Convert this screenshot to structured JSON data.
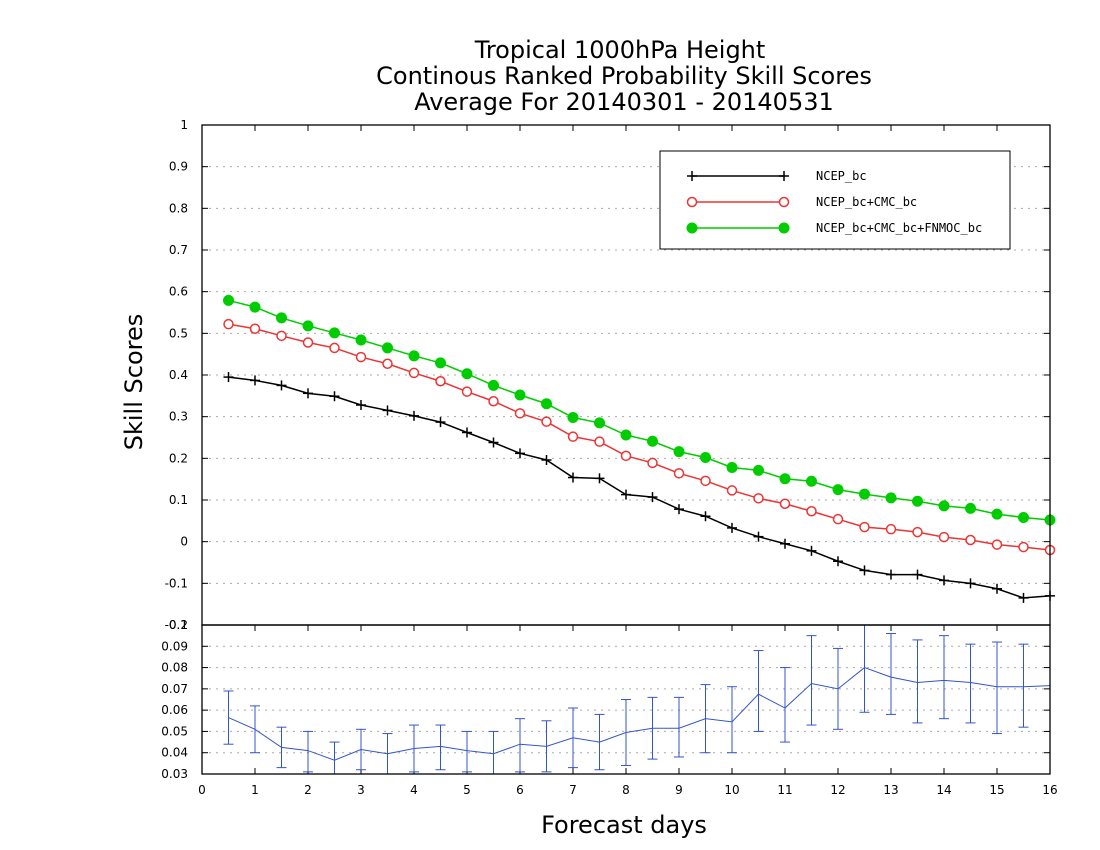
{
  "titles": [
    "Tropical 1000hPa Height",
    "Continous Ranked Probability Skill Scores",
    "Average For 20140301 - 20140531"
  ],
  "colors": {
    "NCEP_bc": "#000000",
    "NCEP_bc+CMC_bc": "#ee3333",
    "NCEP_bc+CMC_bc+FNMOC_bc": "#00cc00",
    "diff": "#3355cc"
  },
  "chart_data": [
    {
      "type": "line",
      "title": "Tropical 1000hPa Height / Continous Ranked Probability Skill Scores / Average For 20140301 - 20140531",
      "xlabel": "Forecast days",
      "ylabel": "Skill Scores",
      "xlim": [
        0,
        16
      ],
      "ylim": [
        -0.2,
        1
      ],
      "yticks": [
        "1",
        "0.9",
        "0.8",
        "0.7",
        "0.6",
        "0.5",
        "0.4",
        "0.3",
        "0.2",
        "0.1",
        "0",
        "-0.1",
        "-0.2"
      ],
      "grid": true,
      "legend_position": "top-right",
      "x": [
        0.5,
        1,
        1.5,
        2,
        2.5,
        3,
        3.5,
        4,
        4.5,
        5,
        5.5,
        6,
        6.5,
        7,
        7.5,
        8,
        8.5,
        9,
        9.5,
        10,
        10.5,
        11,
        11.5,
        12,
        12.5,
        13,
        13.5,
        14,
        14.5,
        15,
        15.5,
        16
      ],
      "series": [
        {
          "name": "NCEP_bc",
          "marker": "plus",
          "values": [
            0.395,
            0.387,
            0.375,
            0.356,
            0.349,
            0.328,
            0.315,
            0.302,
            0.287,
            0.262,
            0.238,
            0.212,
            0.196,
            0.154,
            0.152,
            0.113,
            0.107,
            0.078,
            0.061,
            0.033,
            0.012,
            -0.005,
            -0.022,
            -0.047,
            -0.069,
            -0.079,
            -0.079,
            -0.093,
            -0.1,
            -0.113,
            -0.135,
            -0.13
          ]
        },
        {
          "name": "NCEP_bc+CMC_bc",
          "marker": "open-circle",
          "values": [
            0.522,
            0.511,
            0.494,
            0.478,
            0.465,
            0.443,
            0.427,
            0.405,
            0.385,
            0.36,
            0.337,
            0.308,
            0.288,
            0.252,
            0.24,
            0.206,
            0.189,
            0.164,
            0.146,
            0.123,
            0.104,
            0.091,
            0.073,
            0.054,
            0.035,
            0.03,
            0.023,
            0.011,
            0.004,
            -0.007,
            -0.013,
            -0.02
          ]
        },
        {
          "name": "NCEP_bc+CMC_bc+FNMOC_bc",
          "marker": "filled-circle",
          "values": [
            0.579,
            0.563,
            0.537,
            0.518,
            0.501,
            0.484,
            0.465,
            0.446,
            0.429,
            0.403,
            0.375,
            0.352,
            0.331,
            0.298,
            0.285,
            0.256,
            0.241,
            0.216,
            0.202,
            0.178,
            0.171,
            0.151,
            0.145,
            0.125,
            0.114,
            0.105,
            0.097,
            0.086,
            0.08,
            0.066,
            0.058,
            0.052
          ]
        }
      ]
    },
    {
      "type": "line",
      "xlabel": "Forecast days",
      "xlim": [
        0,
        16
      ],
      "ylim": [
        0.03,
        0.1
      ],
      "xticks": [
        "0",
        "1",
        "2",
        "3",
        "4",
        "5",
        "6",
        "7",
        "8",
        "9",
        "10",
        "11",
        "12",
        "13",
        "14",
        "15",
        "16"
      ],
      "yticks": [
        "0.1",
        "0.09",
        "0.08",
        "0.07",
        "0.06",
        "0.05",
        "0.04",
        "0.03"
      ],
      "grid": true,
      "x": [
        0.5,
        1,
        1.5,
        2,
        2.5,
        3,
        3.5,
        4,
        4.5,
        5,
        5.5,
        6,
        6.5,
        7,
        7.5,
        8,
        8.5,
        9,
        9.5,
        10,
        10.5,
        11,
        11.5,
        12,
        12.5,
        13,
        13.5,
        14,
        14.5,
        15,
        15.5,
        16
      ],
      "series": [
        {
          "error_bars": true,
          "values": [
            0.0565,
            0.051,
            0.0425,
            0.041,
            0.0365,
            0.0415,
            0.0395,
            0.042,
            0.043,
            0.041,
            0.0395,
            0.044,
            0.043,
            0.047,
            0.045,
            0.0495,
            0.0515,
            0.0515,
            0.056,
            0.0545,
            0.0675,
            0.061,
            0.0725,
            0.07,
            0.08,
            0.0755,
            0.073,
            0.074,
            0.073,
            0.071,
            0.071,
            0.0715
          ],
          "lower": [
            0.044,
            0.04,
            0.033,
            0.031,
            0.028,
            0.032,
            0.029,
            0.031,
            0.032,
            0.031,
            0.027,
            0.031,
            0.031,
            0.033,
            0.032,
            0.034,
            0.037,
            0.038,
            0.04,
            0.04,
            0.05,
            0.045,
            0.053,
            0.051,
            0.059,
            0.058,
            0.054,
            0.056,
            0.054,
            0.049,
            0.052,
            0.052
          ],
          "upper": [
            0.069,
            0.062,
            0.052,
            0.05,
            0.045,
            0.051,
            0.049,
            0.053,
            0.053,
            0.05,
            0.05,
            0.056,
            0.055,
            0.061,
            0.058,
            0.065,
            0.066,
            0.066,
            0.072,
            0.071,
            0.088,
            0.08,
            0.095,
            0.089,
            0.103,
            0.096,
            0.093,
            0.095,
            0.091,
            0.092,
            0.091,
            0.09
          ]
        }
      ]
    }
  ]
}
